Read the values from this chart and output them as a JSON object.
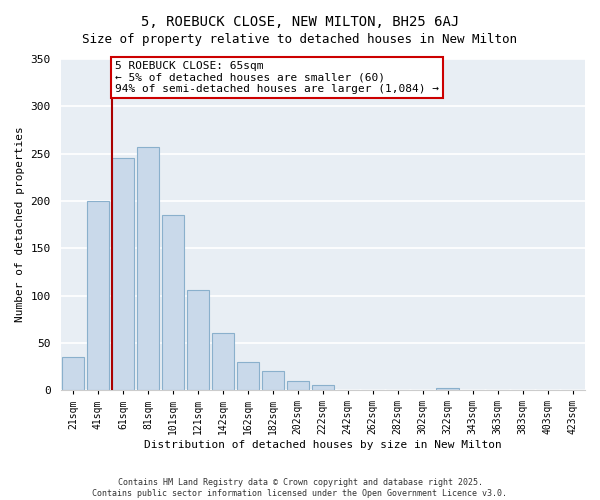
{
  "title": "5, ROEBUCK CLOSE, NEW MILTON, BH25 6AJ",
  "subtitle": "Size of property relative to detached houses in New Milton",
  "xlabel": "Distribution of detached houses by size in New Milton",
  "ylabel": "Number of detached properties",
  "bin_labels": [
    "21sqm",
    "41sqm",
    "61sqm",
    "81sqm",
    "101sqm",
    "121sqm",
    "142sqm",
    "162sqm",
    "182sqm",
    "202sqm",
    "222sqm",
    "242sqm",
    "262sqm",
    "282sqm",
    "302sqm",
    "322sqm",
    "343sqm",
    "363sqm",
    "383sqm",
    "403sqm",
    "423sqm"
  ],
  "bar_values": [
    35,
    200,
    245,
    257,
    185,
    106,
    60,
    30,
    20,
    10,
    5,
    0,
    0,
    0,
    0,
    2,
    0,
    0,
    0,
    0,
    0
  ],
  "bar_color": "#c9d9ea",
  "bar_edge_color": "#8ab0cc",
  "ylim": [
    0,
    350
  ],
  "yticks": [
    0,
    50,
    100,
    150,
    200,
    250,
    300,
    350
  ],
  "property_line_bin": 2,
  "property_line_color": "#aa0000",
  "annotation_title": "5 ROEBUCK CLOSE: 65sqm",
  "annotation_line1": "← 5% of detached houses are smaller (60)",
  "annotation_line2": "94% of semi-detached houses are larger (1,084) →",
  "annotation_box_facecolor": "#ffffff",
  "annotation_box_edgecolor": "#cc0000",
  "footer1": "Contains HM Land Registry data © Crown copyright and database right 2025.",
  "footer2": "Contains public sector information licensed under the Open Government Licence v3.0.",
  "fig_facecolor": "#ffffff",
  "plot_facecolor": "#e8eef4",
  "grid_color": "#ffffff",
  "title_fontsize": 10,
  "subtitle_fontsize": 9,
  "axis_label_fontsize": 8,
  "tick_fontsize": 7,
  "annotation_fontsize": 8,
  "footer_fontsize": 6
}
